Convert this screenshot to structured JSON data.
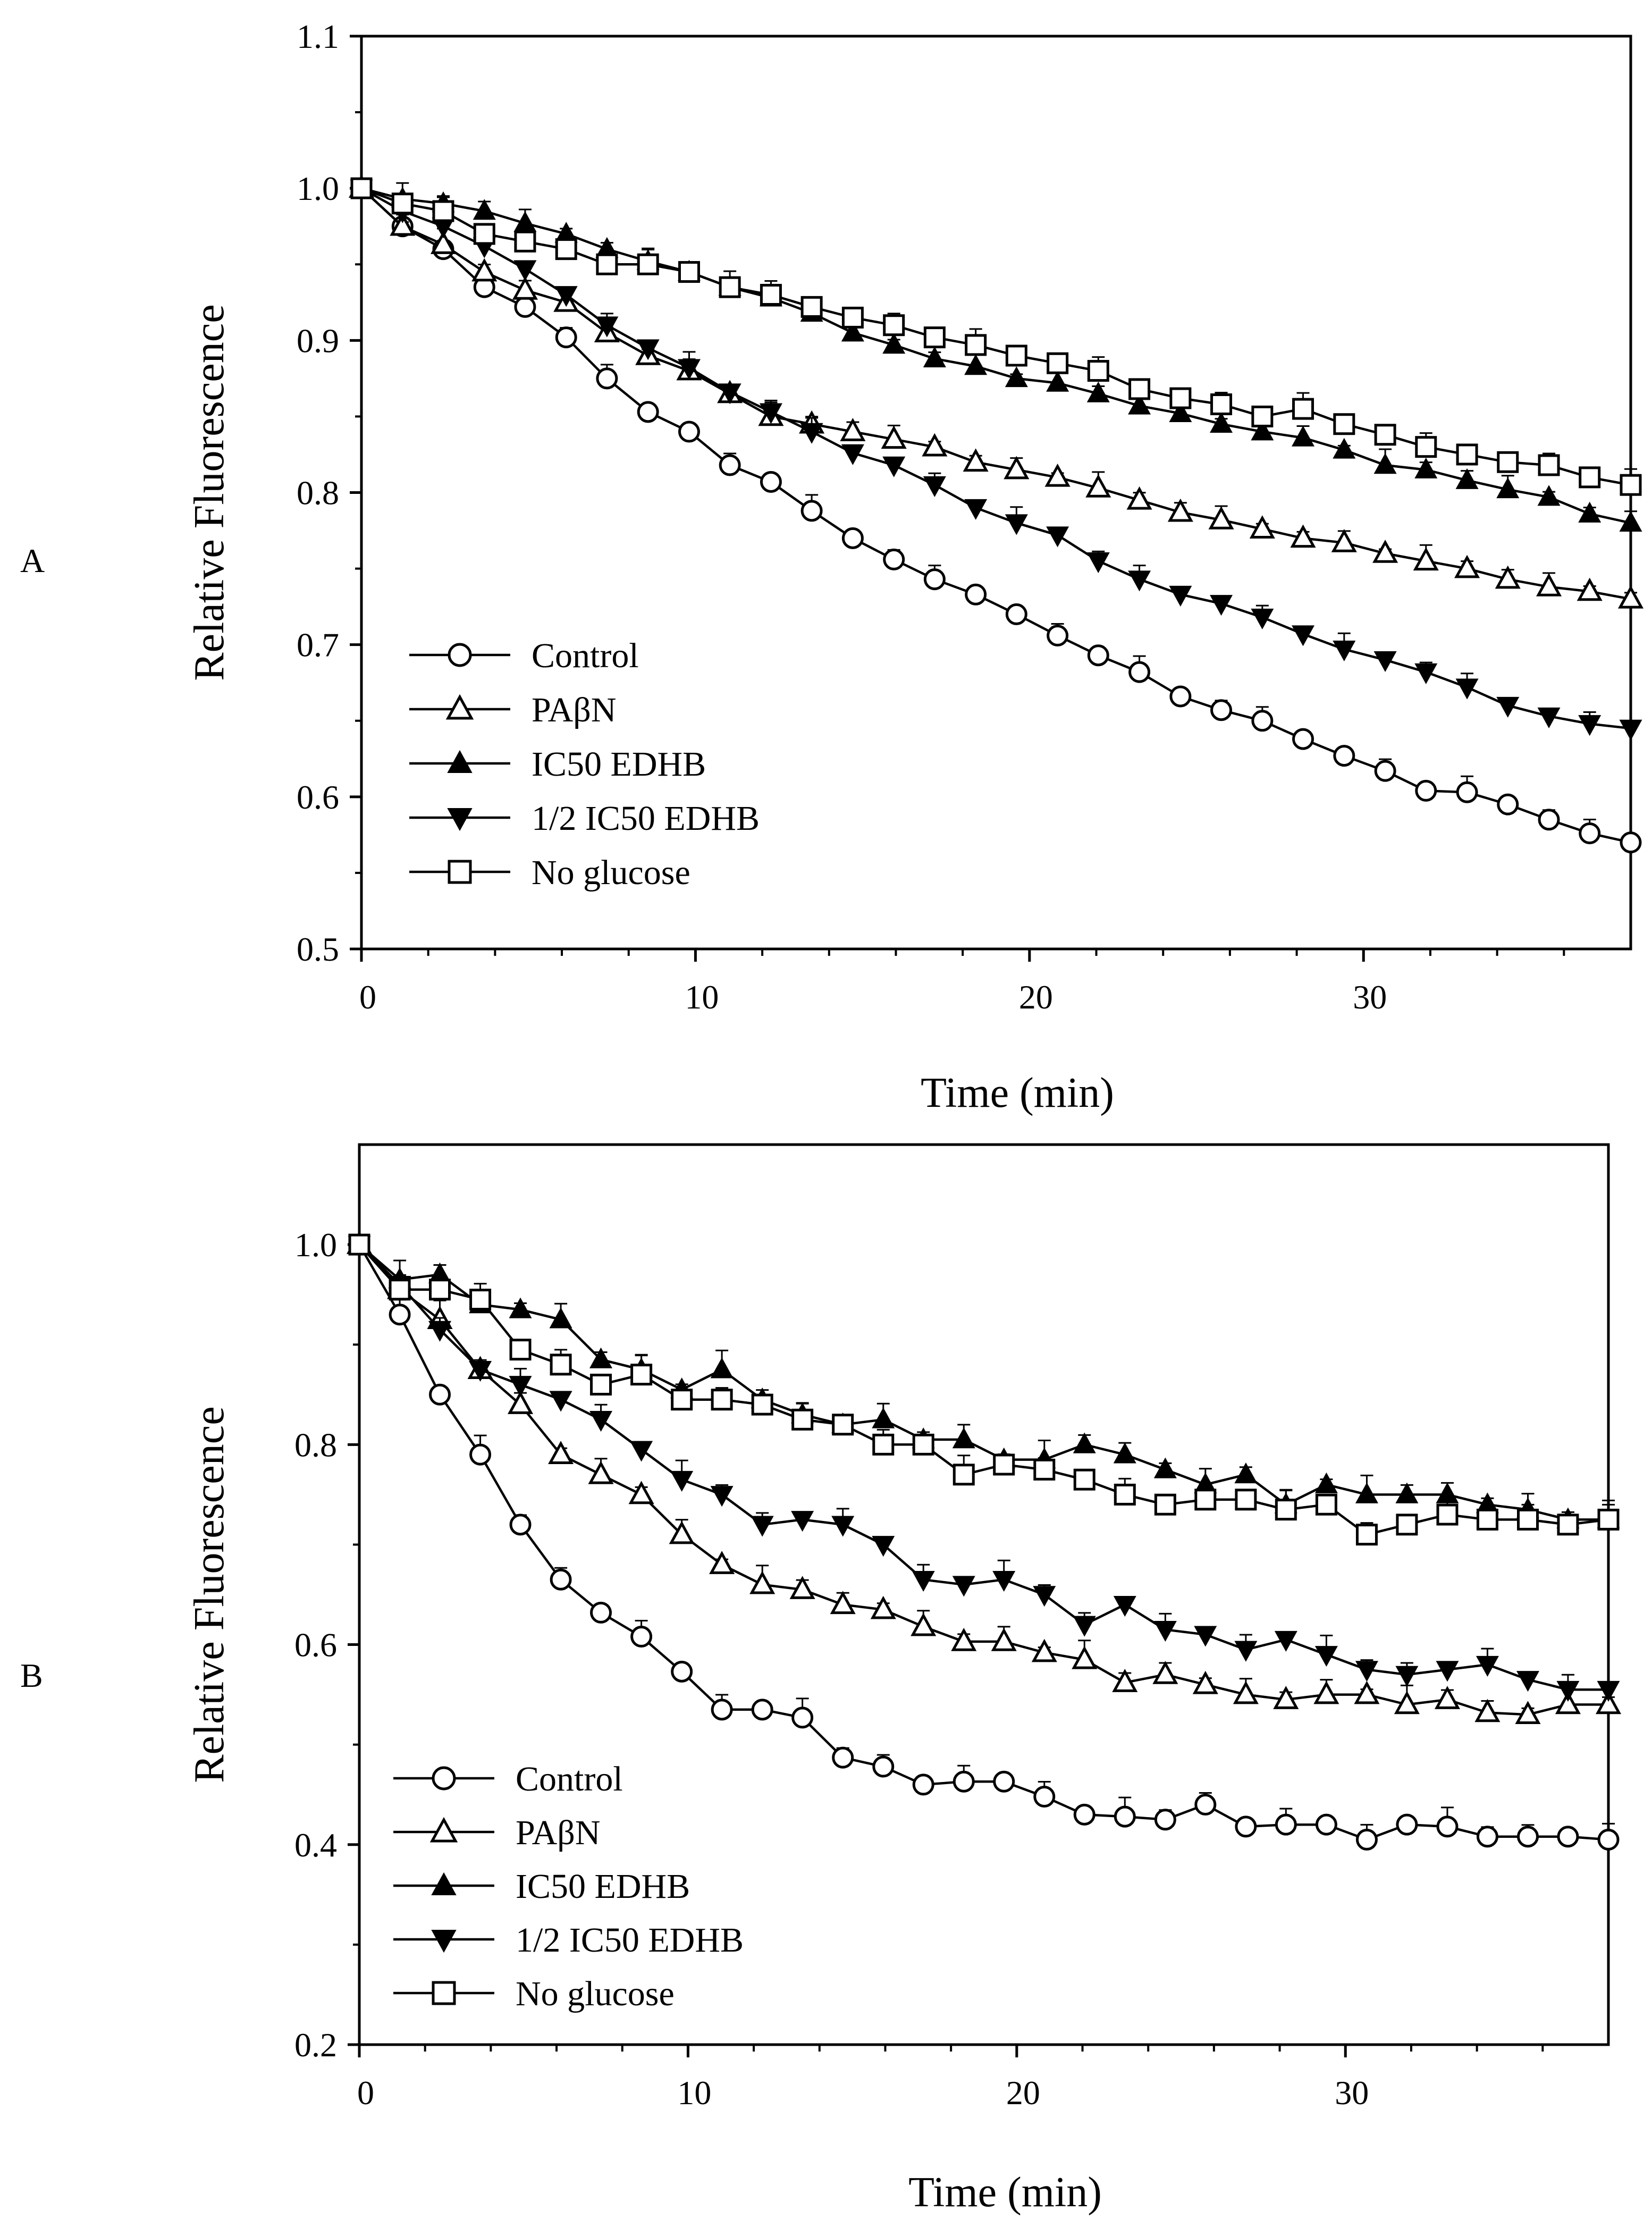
{
  "chart_data": [
    {
      "type": "line",
      "panel_label": "A",
      "xlabel": "Time (min)",
      "ylabel": "Relative Fluorescence",
      "xlim": [
        0,
        38
      ],
      "ylim": [
        0.5,
        1.1
      ],
      "yticks": [
        0.5,
        0.6,
        0.7,
        0.8,
        0.9,
        1.0,
        1.1
      ],
      "ytick_labels": [
        "0.5",
        "0.6",
        "0.7",
        "0.8",
        "0.9",
        "1.0",
        "1.1"
      ],
      "xticks": [
        0,
        10,
        20,
        30
      ],
      "xtick_labels": [
        "0",
        "10",
        "20",
        "30"
      ],
      "legend_position": "bottom-left",
      "x": [
        0,
        1.23,
        2.45,
        3.68,
        4.9,
        6.13,
        7.35,
        8.58,
        9.81,
        11.03,
        12.26,
        13.48,
        14.71,
        15.94,
        17.16,
        18.39,
        19.61,
        20.84,
        22.06,
        23.29,
        24.52,
        25.74,
        26.97,
        28.19,
        29.42,
        30.65,
        31.87,
        33.1,
        34.32,
        35.55,
        36.77,
        38
      ],
      "series": [
        {
          "name": "Control",
          "marker": "circle-open",
          "values": [
            1.0,
            0.975,
            0.96,
            0.935,
            0.922,
            0.902,
            0.875,
            0.853,
            0.84,
            0.818,
            0.807,
            0.788,
            0.77,
            0.756,
            0.743,
            0.733,
            0.72,
            0.706,
            0.693,
            0.682,
            0.666,
            0.657,
            0.65,
            0.638,
            0.627,
            0.617,
            0.604,
            0.603,
            0.595,
            0.585,
            0.576,
            0.57
          ]
        },
        {
          "name": "PAβN",
          "marker": "triangle-up-open",
          "values": [
            1.0,
            0.975,
            0.963,
            0.945,
            0.933,
            0.925,
            0.905,
            0.89,
            0.88,
            0.865,
            0.85,
            0.845,
            0.84,
            0.835,
            0.83,
            0.82,
            0.815,
            0.81,
            0.803,
            0.795,
            0.787,
            0.782,
            0.776,
            0.77,
            0.767,
            0.76,
            0.755,
            0.75,
            0.743,
            0.738,
            0.735,
            0.73
          ]
        },
        {
          "name": "IC50 EDHB",
          "marker": "triangle-up-filled",
          "values": [
            1.0,
            0.993,
            0.99,
            0.985,
            0.977,
            0.97,
            0.96,
            0.952,
            0.945,
            0.935,
            0.928,
            0.918,
            0.905,
            0.897,
            0.888,
            0.883,
            0.875,
            0.872,
            0.865,
            0.857,
            0.852,
            0.845,
            0.84,
            0.836,
            0.828,
            0.818,
            0.815,
            0.808,
            0.802,
            0.797,
            0.786,
            0.78
          ]
        },
        {
          "name": "1/2 IC50 EDHB",
          "marker": "triangle-down-filled",
          "values": [
            1.0,
            0.985,
            0.975,
            0.962,
            0.947,
            0.93,
            0.91,
            0.895,
            0.882,
            0.866,
            0.853,
            0.84,
            0.826,
            0.818,
            0.805,
            0.79,
            0.78,
            0.772,
            0.755,
            0.743,
            0.733,
            0.727,
            0.718,
            0.707,
            0.697,
            0.69,
            0.682,
            0.672,
            0.66,
            0.653,
            0.648,
            0.645
          ]
        },
        {
          "name": "No glucose",
          "marker": "square-open",
          "values": [
            1.0,
            0.99,
            0.985,
            0.97,
            0.965,
            0.96,
            0.95,
            0.95,
            0.945,
            0.935,
            0.93,
            0.922,
            0.915,
            0.91,
            0.902,
            0.897,
            0.89,
            0.885,
            0.88,
            0.868,
            0.862,
            0.858,
            0.85,
            0.855,
            0.845,
            0.838,
            0.83,
            0.825,
            0.82,
            0.818,
            0.81,
            0.805
          ]
        }
      ]
    },
    {
      "type": "line",
      "panel_label": "B",
      "xlabel": "Time (min)",
      "ylabel": "Relative Fluorescence",
      "xlim": [
        0,
        38
      ],
      "ylim": [
        0.2,
        1.1
      ],
      "yticks": [
        0.2,
        0.4,
        0.6,
        0.8,
        1.0
      ],
      "ytick_labels": [
        "0.2",
        "0.4",
        "0.6",
        "0.8",
        "1.0"
      ],
      "xticks": [
        0,
        10,
        20,
        30
      ],
      "xtick_labels": [
        "0",
        "10",
        "20",
        "30"
      ],
      "legend_position": "bottom-left",
      "x": [
        0,
        1.23,
        2.45,
        3.68,
        4.9,
        6.13,
        7.35,
        8.58,
        9.81,
        11.03,
        12.26,
        13.48,
        14.71,
        15.94,
        17.16,
        18.39,
        19.61,
        20.84,
        22.06,
        23.29,
        24.52,
        25.74,
        26.97,
        28.19,
        29.42,
        30.65,
        31.87,
        33.1,
        34.32,
        35.55,
        36.77,
        38
      ],
      "series": [
        {
          "name": "Control",
          "marker": "circle-open",
          "values": [
            1.0,
            0.93,
            0.85,
            0.79,
            0.72,
            0.665,
            0.632,
            0.608,
            0.573,
            0.535,
            0.535,
            0.527,
            0.487,
            0.478,
            0.46,
            0.463,
            0.463,
            0.448,
            0.43,
            0.428,
            0.425,
            0.44,
            0.418,
            0.42,
            0.42,
            0.405,
            0.42,
            0.418,
            0.408,
            0.408,
            0.408,
            0.405
          ]
        },
        {
          "name": "PAβN",
          "marker": "triangle-up-open",
          "values": [
            1.0,
            0.955,
            0.925,
            0.875,
            0.84,
            0.79,
            0.77,
            0.75,
            0.71,
            0.68,
            0.66,
            0.655,
            0.64,
            0.635,
            0.618,
            0.603,
            0.603,
            0.592,
            0.585,
            0.562,
            0.57,
            0.56,
            0.55,
            0.545,
            0.55,
            0.55,
            0.54,
            0.545,
            0.532,
            0.53,
            0.54,
            0.54
          ]
        },
        {
          "name": "IC50 EDHB",
          "marker": "triangle-up-filled",
          "values": [
            1.0,
            0.965,
            0.97,
            0.94,
            0.935,
            0.925,
            0.885,
            0.875,
            0.855,
            0.875,
            0.845,
            0.83,
            0.82,
            0.825,
            0.805,
            0.805,
            0.785,
            0.785,
            0.8,
            0.79,
            0.775,
            0.76,
            0.77,
            0.74,
            0.76,
            0.75,
            0.75,
            0.75,
            0.74,
            0.735,
            0.725,
            0.725
          ]
        },
        {
          "name": "1/2 IC50 EDHB",
          "marker": "triangle-down-filled",
          "values": [
            1.0,
            0.96,
            0.915,
            0.875,
            0.86,
            0.845,
            0.825,
            0.795,
            0.765,
            0.75,
            0.72,
            0.725,
            0.72,
            0.7,
            0.665,
            0.66,
            0.665,
            0.65,
            0.62,
            0.64,
            0.615,
            0.61,
            0.595,
            0.605,
            0.59,
            0.575,
            0.57,
            0.575,
            0.58,
            0.565,
            0.555,
            0.555
          ]
        },
        {
          "name": "No glucose",
          "marker": "square-open",
          "values": [
            1.0,
            0.955,
            0.955,
            0.945,
            0.895,
            0.88,
            0.86,
            0.87,
            0.845,
            0.845,
            0.84,
            0.825,
            0.82,
            0.8,
            0.8,
            0.77,
            0.78,
            0.775,
            0.765,
            0.75,
            0.74,
            0.745,
            0.745,
            0.735,
            0.74,
            0.71,
            0.72,
            0.73,
            0.725,
            0.725,
            0.72,
            0.725
          ]
        }
      ]
    }
  ]
}
